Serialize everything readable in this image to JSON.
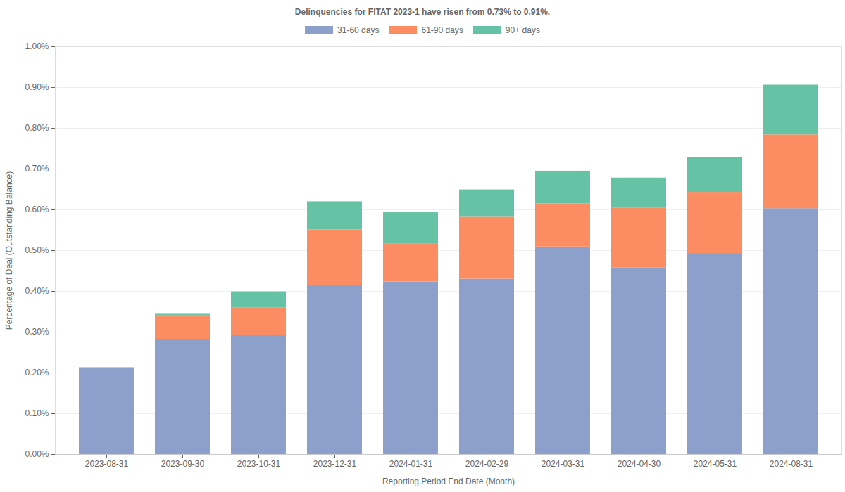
{
  "chart_data": {
    "type": "bar",
    "title": "Delinquencies for FITAT 2023-1 have risen from 0.73% to 0.91%.",
    "x_label": "Reporting Period End Date (Month)",
    "y_label": "Percentage of Deal (Outstanding Balance)",
    "categories": [
      "2023-08-31",
      "2023-09-30",
      "2023-10-31",
      "2023-12-31",
      "2024-01-31",
      "2024-02-29",
      "2024-03-31",
      "2024-04-30",
      "2024-05-31",
      "2024-08-31"
    ],
    "series": [
      {
        "name": "31-60 days",
        "color": "#8da0cb",
        "values": [
          0.213,
          0.282,
          0.293,
          0.415,
          0.423,
          0.43,
          0.509,
          0.458,
          0.493,
          0.603
        ]
      },
      {
        "name": "61-90 days",
        "color": "#fc8d62",
        "values": [
          0,
          0.058,
          0.067,
          0.136,
          0.094,
          0.152,
          0.106,
          0.146,
          0.15,
          0.181
        ]
      },
      {
        "name": "90+ days",
        "color": "#66c2a5",
        "values": [
          0,
          0.004,
          0.039,
          0.069,
          0.076,
          0.067,
          0.08,
          0.074,
          0.085,
          0.122
        ]
      }
    ],
    "stacked": true,
    "ylim": [
      0,
      1
    ],
    "yticks": [
      {
        "value": 0,
        "label": "0.00%"
      },
      {
        "value": 0.1,
        "label": "0.10%"
      },
      {
        "value": 0.2,
        "label": "0.20%"
      },
      {
        "value": 0.3,
        "label": "0.30%"
      },
      {
        "value": 0.4,
        "label": "0.40%"
      },
      {
        "value": 0.5,
        "label": "0.50%"
      },
      {
        "value": 0.6,
        "label": "0.60%"
      },
      {
        "value": 0.7,
        "label": "0.70%"
      },
      {
        "value": 0.8,
        "label": "0.80%"
      },
      {
        "value": 0.9,
        "label": "0.90%"
      },
      {
        "value": 1,
        "label": "1.00%"
      }
    ],
    "grid": true,
    "legend": "top"
  }
}
